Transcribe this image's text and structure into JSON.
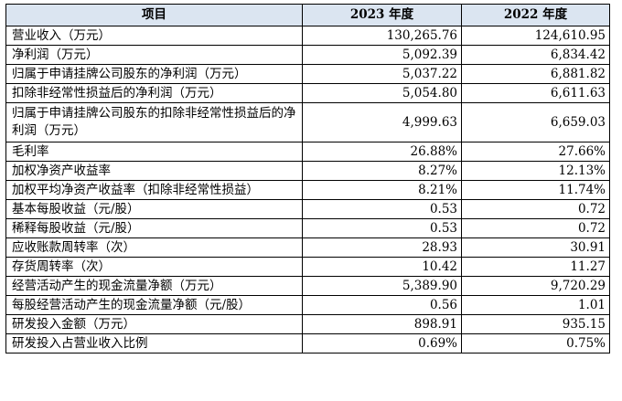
{
  "table": {
    "headers": [
      "项目",
      "2023 年度",
      "2022 年度"
    ],
    "rows": [
      {
        "item": "营业收入（万元）",
        "y2023": "130,265.76",
        "y2022": "124,610.95"
      },
      {
        "item": "净利润（万元）",
        "y2023": "5,092.39",
        "y2022": "6,834.42"
      },
      {
        "item": "归属于申请挂牌公司股东的净利润（万元）",
        "y2023": "5,037.22",
        "y2022": "6,881.82"
      },
      {
        "item": "扣除非经常性损益后的净利润（万元）",
        "y2023": "5,054.80",
        "y2022": "6,611.63"
      },
      {
        "item": "归属于申请挂牌公司股东的扣除非经常性损益后的净利润（万元）",
        "y2023": "4,999.63",
        "y2022": "6,659.03"
      },
      {
        "item": "毛利率",
        "y2023": "26.88%",
        "y2022": "27.66%"
      },
      {
        "item": "加权净资产收益率",
        "y2023": "8.27%",
        "y2022": "12.13%"
      },
      {
        "item": "加权平均净资产收益率（扣除非经常性损益）",
        "y2023": "8.21%",
        "y2022": "11.74%"
      },
      {
        "item": "基本每股收益（元/股）",
        "y2023": "0.53",
        "y2022": "0.72"
      },
      {
        "item": "稀释每股收益（元/股）",
        "y2023": "0.53",
        "y2022": "0.72"
      },
      {
        "item": "应收账款周转率（次）",
        "y2023": "28.93",
        "y2022": "30.91"
      },
      {
        "item": "存货周转率（次）",
        "y2023": "10.42",
        "y2022": "11.27"
      },
      {
        "item": "经营活动产生的现金流量净额（万元）",
        "y2023": "5,389.90",
        "y2022": "9,720.29"
      },
      {
        "item": "每股经营活动产生的现金流量净额（元/股）",
        "y2023": "0.56",
        "y2022": "1.01"
      },
      {
        "item": "研发投入金额（万元）",
        "y2023": "898.91",
        "y2022": "935.15"
      },
      {
        "item": "研发投入占营业收入比例",
        "y2023": "0.69%",
        "y2022": "0.75%"
      }
    ]
  },
  "colors": {
    "header_bg": "#dbe5f1",
    "border": "#000000",
    "text": "#000000"
  }
}
